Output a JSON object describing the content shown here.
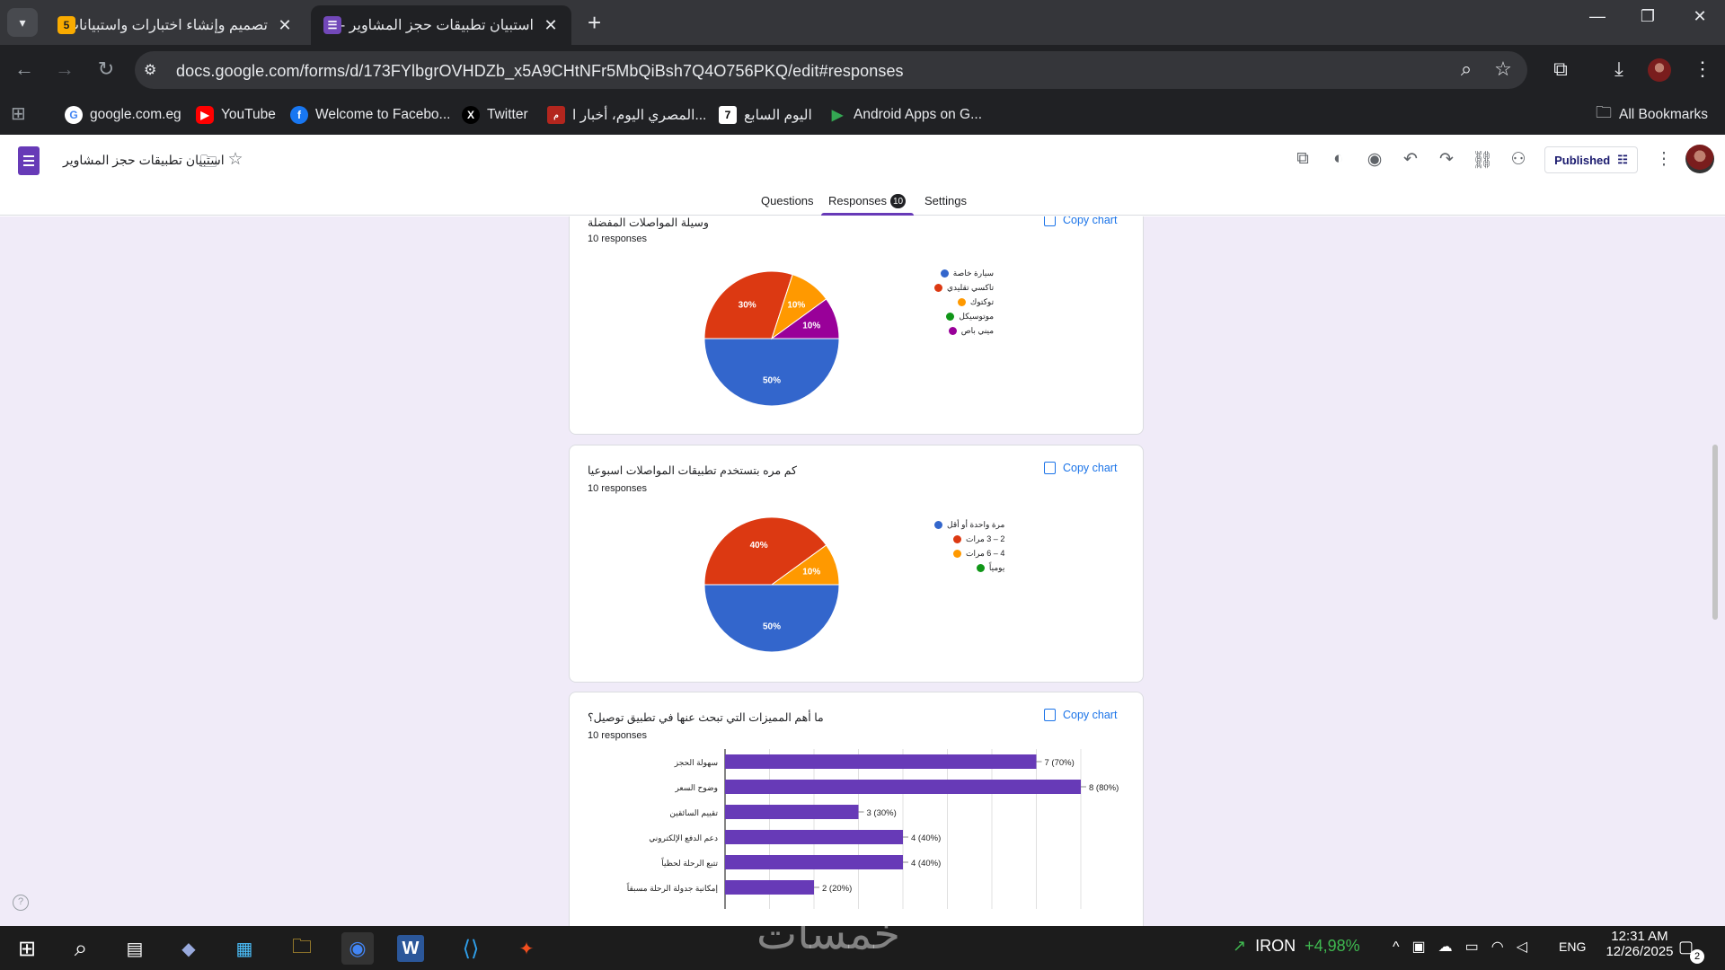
{
  "browser": {
    "tabs": [
      {
        "title": "تصميم وإنشاء اختبارات واستبيانات",
        "favicon": "5"
      },
      {
        "title": "استبيان تطبيقات حجز المشاوير - ع",
        "favicon": "forms-icon"
      }
    ],
    "url": "docs.google.com/forms/d/173FYlbgrOVHDZb_x5A9CHtNFr5MbQiBsh7Q4O756PKQ/edit#responses",
    "bookmarks": [
      "google.com.eg",
      "YouTube",
      "Welcome to Facebo...",
      "Twitter",
      "المصري اليوم، أخبار ا...",
      "اليوم السابع",
      "Android Apps on G..."
    ],
    "all_bookmarks": "All Bookmarks"
  },
  "form": {
    "title": "استبيان تطبيقات حجز المشاوير",
    "publish_label": "Published",
    "tabs": {
      "questions": "Questions",
      "responses": "Responses",
      "responses_count": "10",
      "settings": "Settings"
    }
  },
  "cards": [
    {
      "title": "وسيلة المواصلات المفضلة",
      "responses": "10 responses",
      "copy": "Copy chart"
    },
    {
      "title": "كم مره بتستخدم تطبيقات المواصلات اسبوعيا",
      "responses": "10 responses",
      "copy": "Copy chart"
    },
    {
      "title": "ما أهم المميزات التي تبحث عنها في تطبيق توصيل؟",
      "responses": "10 responses",
      "copy": "Copy chart"
    }
  ],
  "chart_data": [
    {
      "type": "pie",
      "title": "وسيلة المواصلات المفضلة",
      "categories": [
        "سيارة خاصة",
        "تاكسي تقليدي",
        "توكتوك",
        "موتوسيكل",
        "ميني باص"
      ],
      "values": [
        50,
        30,
        10,
        0,
        10
      ],
      "slice_labels": [
        "50%",
        "30%",
        "10%",
        "",
        "10%"
      ],
      "colors": [
        "#3366cc",
        "#dc3912",
        "#ff9900",
        "#109618",
        "#990099"
      ],
      "legend": "right"
    },
    {
      "type": "pie",
      "title": "كم مره بتستخدم تطبيقات المواصلات اسبوعيا",
      "categories": [
        "مرة واحدة أو أقل",
        "2 – 3 مرات",
        "4 – 6 مرات",
        "يومياً"
      ],
      "values": [
        50,
        40,
        10,
        0
      ],
      "slice_labels": [
        "50%",
        "40%",
        "10%",
        ""
      ],
      "colors": [
        "#3366cc",
        "#dc3912",
        "#ff9900",
        "#109618"
      ],
      "legend": "right"
    },
    {
      "type": "bar",
      "title": "ما أهم المميزات التي تبحث عنها في تطبيق توصيل؟",
      "categories": [
        "سهولة الحجز",
        "وضوح السعر",
        "تقييم السائقين",
        "دعم الدفع الإلكتروني",
        "تتبع الرحلة لحظياً",
        "إمكانية جدولة الرحلة مسبقاً"
      ],
      "values": [
        7,
        8,
        3,
        4,
        4,
        2
      ],
      "value_labels": [
        "7 (70%)",
        "8 (80%)",
        "3 (30%)",
        "4 (40%)",
        "4 (40%)",
        "2 (20%)"
      ],
      "xlim": [
        0,
        8
      ],
      "grid": true,
      "color": "#673ab7"
    }
  ],
  "taskbar": {
    "stock": "IRON",
    "stock_change": "+4,98%",
    "lang": "ENG",
    "time": "12:31 AM",
    "date": "12/26/2025",
    "notifications": "2"
  }
}
